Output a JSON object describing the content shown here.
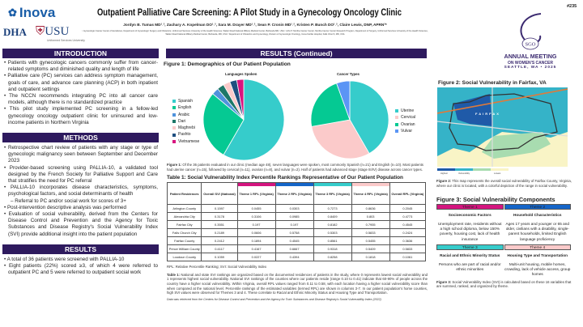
{
  "header": {
    "logo_inova": "Inova",
    "logo_dha": "DHA",
    "logo_usu": "USU",
    "usu_sub": "Uniformed Services University",
    "title": "Outpatient Palliative Care Screening: A Pilot Study in a Gynecology Oncology Clinic",
    "authors": "Jordyn B. Tumas MD¹˒², Zachary A. Kopelman DO¹˒², Sara M. Drayer MD¹˒², Sean P. Cronin MD¹˒², Kristen P. Bunch DO¹˒², Claire Lewis, DNP, APRN³*",
    "affiliations": "¹ Gynecologic Cancer Center of Excellence, Department of Gynecologic Surgery and Obstetrics, Uniformed Services University of the Health Sciences, Walter Reed National Military Medical Center, Bethesda MD, USA ² John P. Murtha Cancer Center, Murtha Cancer Center Research Program, Department of Surgery, Uniformed Services University of the Health Sciences, Walter Reed National Military Medical Center, Bethesda, MD, USA ³ Department of Obstetrics and Gynecology, Division of Gynecologic Oncology, Inova Fairfax Hospital, Falls Church, MD, USA",
    "poster_number": "#235",
    "sgo_logo": "SGO",
    "meeting_line1": "ANNUAL MEETING",
    "meeting_line2": "ON WOMEN'S CANCER",
    "meeting_line3": "SEATTLE, WA • 2025"
  },
  "intro": {
    "title": "INTRODUCTION",
    "bullets": [
      "Patients with gynecologic cancers commonly suffer from cancer-related symptoms and diminished quality and length of life",
      "Palliative care (PC) services can address symptom management, goals of care, and advance care planning (ACP) in both inpatient and outpatient settings",
      "The NCCN recommends integrating PC into all cancer care models, although there is no standardized practice",
      "This pilot study implemented PC screening in a fellow-led gynecology oncology outpatient clinic for uninsured and low-income patients in Northern Virginia"
    ]
  },
  "methods": {
    "title": "METHODS",
    "bullets": [
      "Retrospective chart review of patients with any stage or type of gynecologic malignancy seen between September and December 2023",
      "Provider-based screening using PALLIA-10, a validated tool designed by the French Society for Palliative Support and Care that stratifies the need for PC referral",
      "PALLIA-10 incorporates disease characteristics, symptoms, psychological factors, and social determinants of health",
      "Referral to PC and/or social work for scores of 3+",
      "Post-intervention descriptive analysis was performed",
      "Evaluation of social vulnerability, derived from the Centers for Disease Control and Prevention and the Agency for Toxic Substances and Disease Registry's Social Vulnerability Index (SVI) provide additional insight into the patient population"
    ]
  },
  "results": {
    "title": "RESULTS",
    "bullets": [
      "A total of 36 patients were screened with PALLIA-10",
      "Eight patients (22%) scored ≥3, of which 4 were referred to outpatient PC and 5 were referred to outpatient social work"
    ]
  },
  "results_cont": {
    "title": "RESULTS (Continued)",
    "fig1_title": "Figure 1: Demographics of Our Patient Population",
    "fig1_caption_label": "Figure 1:",
    "fig1_caption": " Of the 36 patients evaluated in our clinic (median age 48), seven languages were spoken, most commonly Spanish (n=21) and English (n=10). Most patients had uterine cancer (n=15), followed by cervical (n=11), ovarian (n=8), and vulvar (n=2). Half of patients had advanced stage (stage III/IV) disease across cancer types."
  },
  "chart_data": [
    {
      "type": "pie",
      "title": "Languages Spoken",
      "legend": "left",
      "categories": [
        "Spanish",
        "English",
        "Arabic",
        "Dari",
        "Maghrebi",
        "Pashto",
        "Vietnamese"
      ],
      "values": [
        21,
        10,
        1,
        1,
        1,
        1,
        1
      ],
      "colors": [
        "#36cccb",
        "#05c993",
        "#4f92dc",
        "#1d7768",
        "#fbcaca",
        "#1f4f80",
        "#d8147f"
      ]
    },
    {
      "type": "pie",
      "title": "Cancer Types",
      "legend": "right",
      "categories": [
        "Uterine",
        "Cervical",
        "Ovarian",
        "Vulvar"
      ],
      "values": [
        15,
        11,
        8,
        2
      ],
      "colors": [
        "#36cccb",
        "#fbcaca",
        "#05c993",
        "#5b95f5"
      ]
    }
  ],
  "table1": {
    "title": "Table 1: Social Vulnerability Index Percentile Rankings Representative of Our Patient Population",
    "headers": [
      "Patient Residences",
      "Overall SVI (National)",
      "Theme 1 RPL (Virginia)",
      "Theme 2 RPL (Virginia)",
      "Theme 3 RPL (Virginia)",
      "Theme 4 RPL (Virginia)",
      "Overall RPL (Virginia)"
    ],
    "rows": [
      [
        "Arlington County",
        "0.1597",
        "0.0455",
        "0.0303",
        "0.7273",
        "0.8636",
        "0.2045"
      ],
      [
        "Alexandria City",
        "0.3178",
        "0.3106",
        "0.0985",
        "0.8409",
        "0.803",
        "0.4773"
      ],
      [
        "Fairfax City",
        "0.3551",
        "0.197",
        "0.197",
        "0.8182",
        "0.7955",
        "0.4545"
      ],
      [
        "Falls Church City",
        "0.2189",
        "0.0606",
        "0.5758",
        "0.5303",
        "0.5833",
        "0.2424"
      ],
      [
        "Fairfax County",
        "0.2412",
        "0.1894",
        "0.4545",
        "0.8561",
        "0.5455",
        "0.3636"
      ],
      [
        "Prince William County",
        "0.4117",
        "0.4167",
        "0.6667",
        "0.9318",
        "0.5409",
        "0.5833"
      ],
      [
        "Loudoun County",
        "0.1059",
        "0.0227",
        "0.4394",
        "0.8258",
        "0.1818",
        "0.1061"
      ]
    ],
    "abbrev": "RPL: Relative Percentile Ranking; SVI: Social Vulnerability Index",
    "caption_label": "Table 1:",
    "caption": " National and state SVI rankings are organized based on the documented residences of patients in the study, where 0 represents lowest social vulnerability and 1 represents highest social vulnerability. National SVI rankings of the counties where our patients reside (range 0.10 to 0.41) indicate that 60-90% of people across the country have a higher social vulnerability. Within Virginia, overall RPL values ranged from 0.11 to 0.58, with each location having a higher social vulnerability score than when compared at the national level. Percentile rankings of the estimated variables (termed RPL) are shown in columns 3-7. In our patient population's home counties, high SVI values were observed for Themes 3 and 4. These correlate to Racial and Ethnic Minority Status and Housing Type and Transportation.",
    "source": "Data was retrieved from the Centers for Disease Control and Prevention and the Agency for Toxic Substances and Disease Registry's Social Vulnerability Index (2022)"
  },
  "fig2": {
    "title": "Figure 2: Social Vulnerability in Fairfax, VA",
    "map_label": "FAIRFAX",
    "legend": [
      "Highest",
      "Vulnerability",
      "Lowest"
    ],
    "caption_label": "Figure 2:",
    "caption": " This map represents the overall social vulnerability of Fairfax County, Virginia, where our clinic is located, with a colorful depiction of the range in social vulnerability."
  },
  "fig3": {
    "title": "Figure 3: Social Vulnerability Components",
    "themes": [
      {
        "label": "Theme 1",
        "color": "#d4157f",
        "name": "Socioeconomic Factors",
        "desc": "Unemployment rate, residents without a high school diploma, below 150% poverty, housing cost, lack of health insurance"
      },
      {
        "label": "Theme 2",
        "color": "#1565c8",
        "name": "Household Characteristics",
        "desc": "Ages 17 years and younger or 65 and older, civilians with a disability, single-parent households, limited English language proficiency"
      },
      {
        "label": "Theme 3",
        "color": "#36cccb",
        "name": "Racial and Ethnic Minority Status",
        "desc": "Persons who are part of racial and/or ethnic minorities"
      },
      {
        "label": "Theme 4",
        "color": "#fbcaca",
        "name": "Housing Type and Transportation",
        "desc": "Multi-unit housing, mobile homes, crowding, lack of vehicle access, group homes"
      }
    ],
    "caption_label": "Figure 3:",
    "caption": " Social Vulnerability Index (SVI) is calculated based on these 16 variables that are summed, ranked, and organized by theme."
  },
  "colors": {
    "header_purple": "#2e1a5e",
    "inova_blue": "#1a5ea8"
  }
}
